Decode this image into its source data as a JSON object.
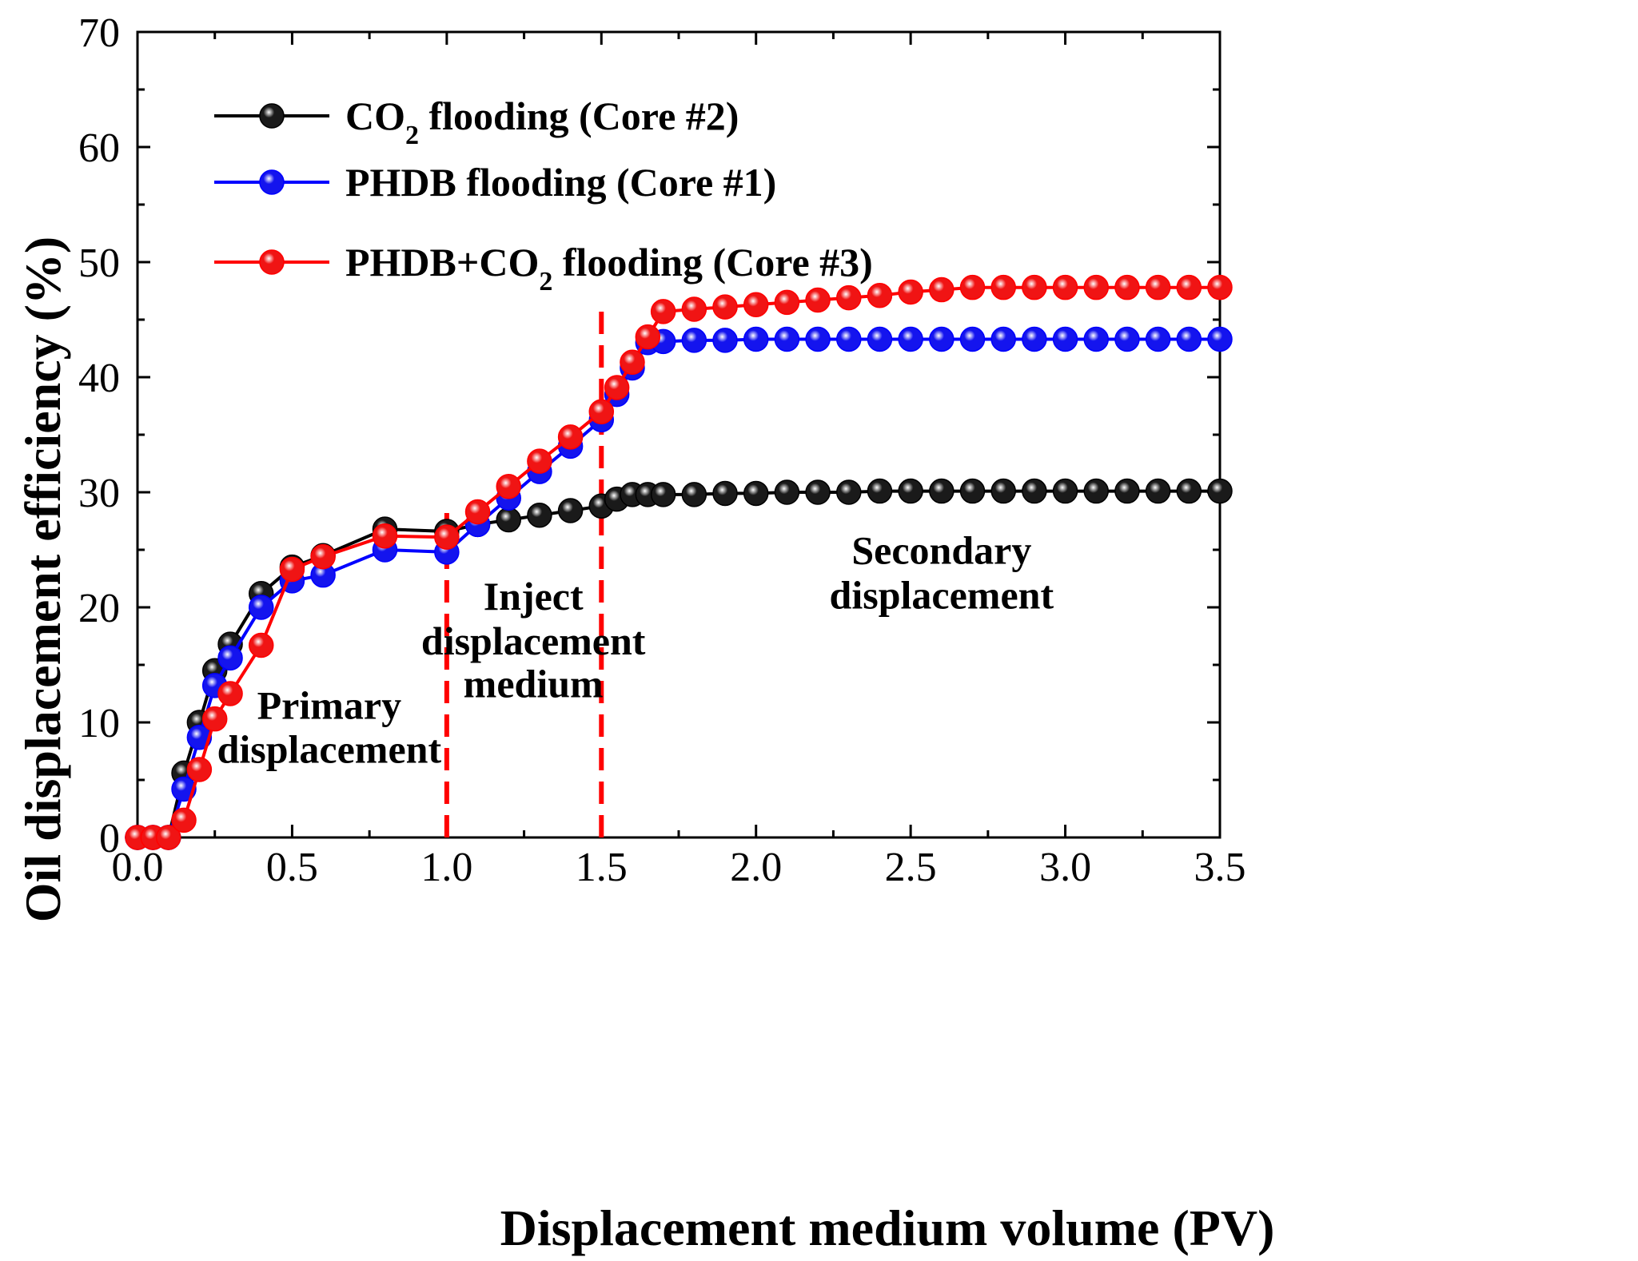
{
  "chart_data": {
    "type": "line",
    "xlabel": "Displacement medium volume (PV)",
    "ylabel": "Oil displacement efficiency (%)",
    "xlim": [
      0.0,
      3.5
    ],
    "ylim": [
      0,
      70
    ],
    "xticks": [
      "0.0",
      "0.5",
      "1.0",
      "1.5",
      "2.0",
      "2.5",
      "3.0",
      "3.5"
    ],
    "yticks": [
      "0",
      "10",
      "20",
      "30",
      "40",
      "50",
      "60",
      "70"
    ],
    "grid": false,
    "legend_position": "top-left",
    "series": [
      {
        "name": "CO2 flooding (Core #2)",
        "legend_parts": [
          "CO",
          "2",
          " flooding (Core #2)"
        ],
        "color": "#000000",
        "marker_color": "#1a1a1a",
        "x": [
          0.0,
          0.05,
          0.1,
          0.15,
          0.2,
          0.25,
          0.3,
          0.4,
          0.5,
          0.6,
          0.8,
          1.0,
          1.1,
          1.2,
          1.3,
          1.4,
          1.5,
          1.55,
          1.6,
          1.65,
          1.7,
          1.8,
          1.9,
          2.0,
          2.1,
          2.2,
          2.3,
          2.4,
          2.5,
          2.6,
          2.7,
          2.8,
          2.9,
          3.0,
          3.1,
          3.2,
          3.3,
          3.4,
          3.5
        ],
        "y": [
          0,
          0,
          0,
          5.6,
          10.0,
          14.5,
          16.8,
          21.2,
          23.5,
          24.5,
          26.8,
          26.6,
          27.2,
          27.6,
          28.0,
          28.4,
          28.8,
          29.4,
          29.8,
          29.8,
          29.8,
          29.8,
          29.9,
          29.9,
          30.0,
          30.0,
          30.0,
          30.1,
          30.1,
          30.1,
          30.1,
          30.1,
          30.1,
          30.1,
          30.1,
          30.1,
          30.1,
          30.1,
          30.1
        ]
      },
      {
        "name": "PHDB flooding (Core #1)",
        "legend_parts": [
          "PHDB flooding (Core #1)"
        ],
        "color": "#0000ff",
        "marker_color": "#1414ee",
        "x": [
          0.0,
          0.05,
          0.1,
          0.15,
          0.2,
          0.25,
          0.3,
          0.4,
          0.5,
          0.6,
          0.8,
          1.0,
          1.1,
          1.2,
          1.3,
          1.4,
          1.5,
          1.55,
          1.6,
          1.65,
          1.7,
          1.8,
          1.9,
          2.0,
          2.1,
          2.2,
          2.3,
          2.4,
          2.5,
          2.6,
          2.7,
          2.8,
          2.9,
          3.0,
          3.1,
          3.2,
          3.3,
          3.4,
          3.5
        ],
        "y": [
          0,
          0,
          0,
          4.2,
          8.7,
          13.2,
          15.6,
          20.0,
          22.3,
          22.8,
          25.0,
          24.8,
          27.2,
          29.5,
          31.8,
          34.0,
          36.3,
          38.5,
          40.8,
          43.0,
          43.1,
          43.2,
          43.2,
          43.3,
          43.3,
          43.3,
          43.3,
          43.3,
          43.3,
          43.3,
          43.3,
          43.3,
          43.3,
          43.3,
          43.3,
          43.3,
          43.3,
          43.3,
          43.3
        ]
      },
      {
        "name": "PHDB+CO2 flooding (Core #3)",
        "legend_parts": [
          "PHDB+CO",
          "2",
          " flooding (Core #3)"
        ],
        "color": "#ff0000",
        "marker_color": "#f01414",
        "x": [
          0.0,
          0.05,
          0.1,
          0.15,
          0.2,
          0.25,
          0.3,
          0.4,
          0.5,
          0.6,
          0.8,
          1.0,
          1.1,
          1.2,
          1.3,
          1.4,
          1.5,
          1.55,
          1.6,
          1.65,
          1.7,
          1.8,
          1.9,
          2.0,
          2.1,
          2.2,
          2.3,
          2.4,
          2.5,
          2.6,
          2.7,
          2.8,
          2.9,
          3.0,
          3.1,
          3.2,
          3.3,
          3.4,
          3.5
        ],
        "y": [
          0,
          0,
          0,
          1.5,
          5.9,
          10.3,
          12.5,
          16.7,
          23.3,
          24.4,
          26.2,
          26.1,
          28.3,
          30.5,
          32.7,
          34.8,
          37.0,
          39.1,
          41.3,
          43.5,
          45.7,
          45.9,
          46.1,
          46.3,
          46.5,
          46.7,
          46.9,
          47.1,
          47.4,
          47.6,
          47.8,
          47.8,
          47.8,
          47.8,
          47.8,
          47.8,
          47.8,
          47.8,
          47.8
        ]
      }
    ],
    "vlines": [
      {
        "x": 1.0,
        "y_from": 0,
        "y_to": 29,
        "color": "#ff0000",
        "style": "dashed"
      },
      {
        "x": 1.5,
        "y_from": 0,
        "y_to": 46.5,
        "color": "#ff0000",
        "style": "dashed"
      }
    ],
    "annotations": [
      {
        "lines": [
          "Primary",
          "displacement"
        ],
        "x": 0.62,
        "y": [
          10.3,
          6.5
        ]
      },
      {
        "lines": [
          "Inject",
          "displacement",
          "medium"
        ],
        "x": 1.28,
        "y": [
          19.8,
          15.9,
          12.2
        ]
      },
      {
        "lines": [
          "Secondary",
          "displacement"
        ],
        "x": 2.6,
        "y": [
          23.8,
          19.9
        ]
      }
    ]
  }
}
